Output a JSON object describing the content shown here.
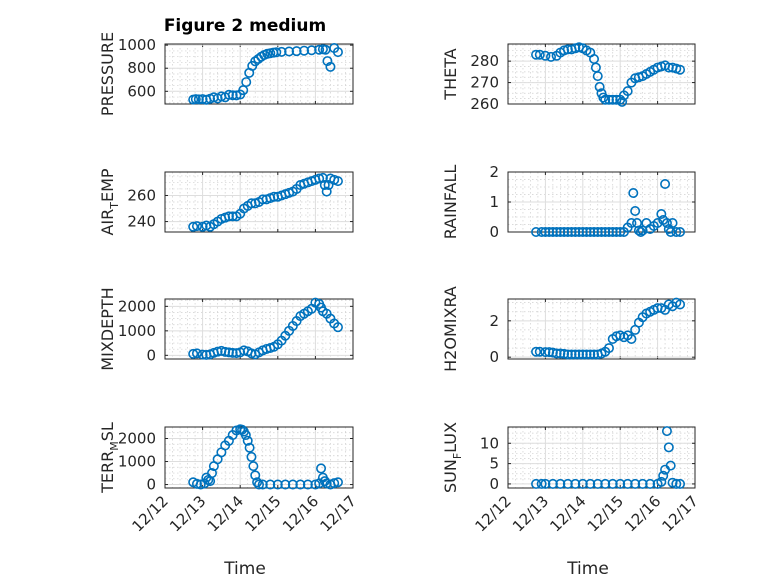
{
  "figure": {
    "title": "Figure 2 medium",
    "xlabel": "Time",
    "x_tick_labels": [
      "12/12",
      "12/13",
      "12/14",
      "12/15",
      "12/16",
      "12/17"
    ],
    "marker": "circle-open",
    "color": "#0072bd"
  },
  "chart_data": [
    {
      "type": "scatter",
      "ylabel": "PRESSURE",
      "ylim": [
        490,
        1010
      ],
      "yticks": [
        600,
        800,
        1000
      ],
      "xlim": [
        0,
        5
      ],
      "grid": true,
      "x": [
        0.75,
        0.82,
        0.9,
        1.0,
        1.1,
        1.2,
        1.3,
        1.4,
        1.5,
        1.6,
        1.7,
        1.8,
        1.9,
        2.0,
        2.08,
        2.16,
        2.24,
        2.32,
        2.4,
        2.48,
        2.56,
        2.64,
        2.72,
        2.8,
        2.88,
        2.96,
        3.1,
        3.3,
        3.5,
        3.7,
        3.9,
        4.1,
        4.2,
        4.27,
        4.32,
        4.4,
        4.5,
        4.6
      ],
      "y": [
        528,
        532,
        530,
        532,
        527,
        536,
        548,
        538,
        556,
        548,
        570,
        566,
        565,
        572,
        610,
        680,
        760,
        820,
        860,
        880,
        900,
        915,
        925,
        930,
        935,
        938,
        942,
        945,
        948,
        952,
        956,
        960,
        965,
        960,
        862,
        812,
        975,
        940
      ]
    },
    {
      "type": "scatter",
      "ylabel": "THETA",
      "ylim": [
        260,
        288
      ],
      "yticks": [
        260,
        270,
        280
      ],
      "xlim": [
        0,
        5
      ],
      "grid": true,
      "x": [
        0.75,
        0.85,
        1.0,
        1.15,
        1.3,
        1.4,
        1.5,
        1.6,
        1.7,
        1.8,
        1.9,
        2.0,
        2.1,
        2.2,
        2.3,
        2.35,
        2.4,
        2.45,
        2.5,
        2.55,
        2.6,
        2.7,
        2.8,
        2.9,
        3.0,
        3.05,
        3.1,
        3.2,
        3.3,
        3.4,
        3.5,
        3.6,
        3.7,
        3.8,
        3.9,
        4.0,
        4.1,
        4.2,
        4.3,
        4.4,
        4.5,
        4.6
      ],
      "y": [
        283,
        283,
        282.5,
        282,
        282.5,
        284,
        285,
        285.5,
        285.5,
        286,
        286.5,
        286,
        285,
        284,
        281,
        277,
        273,
        268,
        265,
        263,
        262,
        262,
        262,
        262,
        262,
        261,
        264,
        266,
        270,
        272,
        272.5,
        273,
        274,
        275,
        276,
        277,
        277.5,
        278,
        277,
        277,
        276.5,
        276
      ]
    },
    {
      "type": "scatter",
      "ylabel": "AIR",
      "ylabel_sub": "T",
      "ylabel_rest": "EMP",
      "ylim": [
        232,
        278
      ],
      "yticks": [
        240,
        260
      ],
      "xlim": [
        0,
        5
      ],
      "grid": true,
      "x": [
        0.75,
        0.85,
        1.0,
        1.1,
        1.2,
        1.3,
        1.4,
        1.5,
        1.6,
        1.7,
        1.8,
        1.9,
        2.0,
        2.1,
        2.2,
        2.3,
        2.4,
        2.5,
        2.6,
        2.7,
        2.8,
        2.9,
        3.0,
        3.1,
        3.2,
        3.3,
        3.4,
        3.5,
        3.6,
        3.7,
        3.8,
        3.9,
        4.0,
        4.1,
        4.2,
        4.25,
        4.3,
        4.35,
        4.4,
        4.5,
        4.6
      ],
      "y": [
        236,
        236.5,
        236,
        237,
        236,
        238,
        240,
        242,
        243,
        244,
        244,
        244,
        246,
        250,
        252,
        254,
        254,
        255,
        257,
        257,
        258,
        259,
        259,
        260,
        261,
        262,
        263,
        265,
        268,
        269,
        270,
        271,
        272,
        273,
        273.5,
        268,
        263,
        268,
        273,
        272,
        271
      ]
    },
    {
      "type": "scatter",
      "ylabel": "RAINFALL",
      "ylim": [
        0,
        2
      ],
      "yticks": [
        0,
        1,
        2
      ],
      "xlim": [
        0,
        5
      ],
      "grid": true,
      "x": [
        0.75,
        0.9,
        1.0,
        1.1,
        1.2,
        1.3,
        1.4,
        1.5,
        1.6,
        1.7,
        1.8,
        1.9,
        2.0,
        2.1,
        2.2,
        2.3,
        2.4,
        2.5,
        2.6,
        2.7,
        2.8,
        2.9,
        3.0,
        3.1,
        3.2,
        3.3,
        3.35,
        3.4,
        3.45,
        3.5,
        3.55,
        3.6,
        3.7,
        3.8,
        3.9,
        4.0,
        4.1,
        4.15,
        4.2,
        4.25,
        4.3,
        4.35,
        4.4,
        4.5,
        4.6
      ],
      "y": [
        0,
        0,
        0,
        0,
        0,
        0,
        0,
        0,
        0,
        0,
        0,
        0,
        0,
        0,
        0,
        0,
        0,
        0,
        0,
        0,
        0,
        0,
        0,
        0,
        0.15,
        0.3,
        1.3,
        0.7,
        0.3,
        0.05,
        0,
        0.05,
        0.3,
        0.1,
        0.2,
        0.3,
        0.6,
        0.4,
        1.6,
        0.3,
        0.1,
        0,
        0.3,
        0,
        0
      ]
    },
    {
      "type": "scatter",
      "ylabel": "MIXDEPTH",
      "ylim": [
        -150,
        2300
      ],
      "yticks": [
        0,
        1000,
        2000
      ],
      "xlim": [
        0,
        5
      ],
      "grid": true,
      "x": [
        0.75,
        0.85,
        1.0,
        1.1,
        1.2,
        1.3,
        1.4,
        1.5,
        1.6,
        1.7,
        1.8,
        1.9,
        2.0,
        2.1,
        2.2,
        2.3,
        2.4,
        2.5,
        2.6,
        2.7,
        2.8,
        2.9,
        3.0,
        3.1,
        3.2,
        3.3,
        3.4,
        3.5,
        3.6,
        3.7,
        3.8,
        3.9,
        4.0,
        4.1,
        4.15,
        4.2,
        4.3,
        4.4,
        4.5,
        4.6
      ],
      "y": [
        60,
        80,
        30,
        20,
        40,
        100,
        150,
        180,
        140,
        120,
        100,
        90,
        120,
        200,
        160,
        80,
        40,
        120,
        200,
        260,
        300,
        350,
        450,
        600,
        800,
        1000,
        1200,
        1400,
        1600,
        1700,
        1800,
        1900,
        2150,
        2100,
        1950,
        1800,
        1700,
        1500,
        1300,
        1150
      ]
    },
    {
      "type": "scatter",
      "ylabel": "H2OMIXRA",
      "ylim": [
        -0.1,
        3.2
      ],
      "yticks": [
        0,
        2
      ],
      "xlim": [
        0,
        5
      ],
      "grid": true,
      "x": [
        0.75,
        0.85,
        1.0,
        1.1,
        1.2,
        1.3,
        1.4,
        1.5,
        1.6,
        1.7,
        1.8,
        1.9,
        2.0,
        2.1,
        2.2,
        2.3,
        2.4,
        2.5,
        2.6,
        2.7,
        2.8,
        2.9,
        3.0,
        3.1,
        3.2,
        3.3,
        3.4,
        3.5,
        3.6,
        3.7,
        3.8,
        3.9,
        4.0,
        4.1,
        4.2,
        4.3,
        4.4,
        4.5,
        4.6
      ],
      "y": [
        0.3,
        0.3,
        0.28,
        0.28,
        0.25,
        0.2,
        0.2,
        0.18,
        0.15,
        0.15,
        0.15,
        0.15,
        0.15,
        0.15,
        0.15,
        0.15,
        0.15,
        0.2,
        0.3,
        0.5,
        1.0,
        1.15,
        1.2,
        1.1,
        1.2,
        1.0,
        1.5,
        1.9,
        2.2,
        2.4,
        2.5,
        2.6,
        2.7,
        2.7,
        2.6,
        2.9,
        2.8,
        3.0,
        2.9
      ]
    },
    {
      "type": "scatter",
      "ylabel": "TERR",
      "ylabel_sub": "M",
      "ylabel_rest": "SL",
      "ylim": [
        -150,
        2500
      ],
      "yticks": [
        0,
        1000,
        2000
      ],
      "xlim": [
        0,
        5
      ],
      "grid": true,
      "x": [
        0.75,
        0.85,
        0.95,
        1.05,
        1.1,
        1.15,
        1.2,
        1.25,
        1.3,
        1.4,
        1.5,
        1.6,
        1.7,
        1.8,
        1.9,
        2.0,
        2.05,
        2.1,
        2.15,
        2.2,
        2.25,
        2.3,
        2.35,
        2.4,
        2.45,
        2.5,
        2.6,
        2.8,
        3.0,
        3.2,
        3.4,
        3.6,
        3.8,
        4.0,
        4.1,
        4.15,
        4.2,
        4.25,
        4.3,
        4.4,
        4.5,
        4.6
      ],
      "y": [
        100,
        30,
        0,
        50,
        300,
        200,
        150,
        500,
        800,
        1100,
        1400,
        1700,
        1900,
        2150,
        2350,
        2400,
        2380,
        2300,
        2150,
        1900,
        1600,
        1200,
        800,
        400,
        100,
        0,
        0,
        0,
        0,
        0,
        0,
        0,
        0,
        0,
        50,
        700,
        300,
        150,
        50,
        0,
        60,
        100
      ]
    },
    {
      "type": "scatter",
      "ylabel": "SUN",
      "ylabel_sub": "F",
      "ylabel_rest": "LUX",
      "ylim": [
        -1,
        14
      ],
      "yticks": [
        0,
        5,
        10
      ],
      "xlim": [
        0,
        5
      ],
      "grid": true,
      "x": [
        0.75,
        0.9,
        1.0,
        1.2,
        1.4,
        1.6,
        1.8,
        2.0,
        2.2,
        2.4,
        2.6,
        2.8,
        3.0,
        3.2,
        3.4,
        3.6,
        3.8,
        4.0,
        4.1,
        4.15,
        4.2,
        4.25,
        4.3,
        4.35,
        4.4,
        4.5,
        4.6
      ],
      "y": [
        0,
        0,
        0,
        0,
        0,
        0,
        0,
        0,
        0,
        0,
        0,
        0,
        0,
        0,
        0,
        0,
        0,
        0,
        0.5,
        2,
        3.5,
        13,
        9,
        4.5,
        0.3,
        0,
        0
      ]
    }
  ]
}
